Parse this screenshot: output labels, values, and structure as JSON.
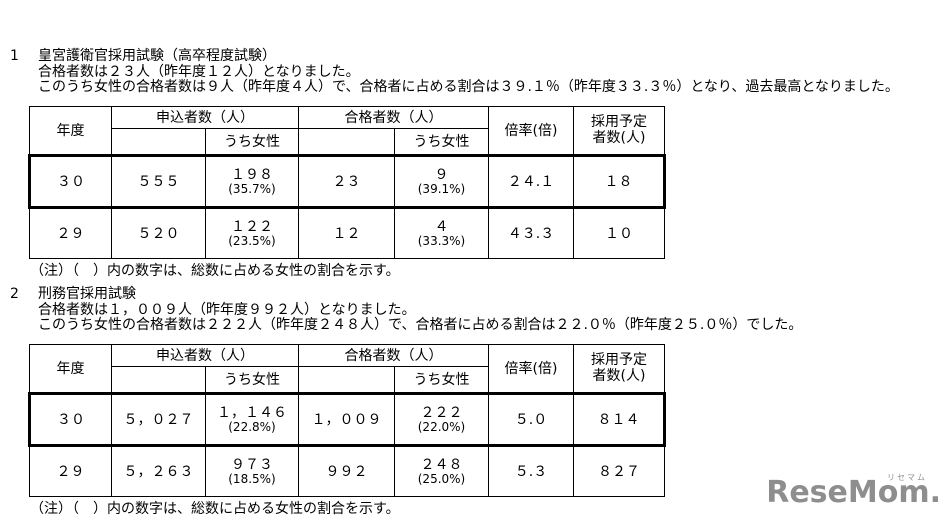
{
  "page": {
    "background": "#ffffff",
    "text_color": "#000000",
    "border_color": "#000000"
  },
  "sections": [
    {
      "number": "1",
      "title": "皇宮護衛官採用試験（高卒程度試験）",
      "paragraph_lines": [
        "合格者数は２３人（昨年度１２人）となりました。",
        "このうち女性の合格者数は９人（昨年度４人）で、合格者に占める割合は３９.１％（昨年度３３.３％）となり、過去最高となりました。"
      ],
      "table": {
        "headers": {
          "year": "年度",
          "applicants": "申込者数（人）",
          "applicants_female": "うち女性",
          "passers": "合格者数（人）",
          "passers_female": "うち女性",
          "ratio": "倍率(倍)",
          "planned_line1": "採用予定",
          "planned_line2": "者数(人)"
        },
        "rows": [
          {
            "year": "３０",
            "applicants": "５５５",
            "applicants_female": "１９８",
            "applicants_female_pct": "(35.7%)",
            "passers": "２３",
            "passers_female": "９",
            "passers_female_pct": "(39.1%)",
            "ratio": "２４.１",
            "planned": "１８"
          },
          {
            "year": "２９",
            "applicants": "５２０",
            "applicants_female": "１２２",
            "applicants_female_pct": "(23.5%)",
            "passers": "１２",
            "passers_female": "４",
            "passers_female_pct": "(33.3%)",
            "ratio": "４３.３",
            "planned": "１０"
          }
        ],
        "note": "（注）（　）内の数字は、総数に占める女性の割合を示す。"
      }
    },
    {
      "number": "2",
      "title": "刑務官採用試験",
      "paragraph_lines": [
        "合格者数は１，００９人（昨年度９９２人）となりました。",
        "このうち女性の合格者数は２２２人（昨年度２４８人）で、合格者に占める割合は２２.０％（昨年度２５.０％）でした。"
      ],
      "table": {
        "headers": {
          "year": "年度",
          "applicants": "申込者数（人）",
          "applicants_female": "うち女性",
          "passers": "合格者数（人）",
          "passers_female": "うち女性",
          "ratio": "倍率(倍)",
          "planned_line1": "採用予定",
          "planned_line2": "者数(人)"
        },
        "rows": [
          {
            "year": "３０",
            "applicants": "５，０２７",
            "applicants_female": "１，１４６",
            "applicants_female_pct": "(22.8%)",
            "passers": "１，００９",
            "passers_female": "２２２",
            "passers_female_pct": "(22.0%)",
            "ratio": "５.０",
            "planned": "８１４"
          },
          {
            "year": "２９",
            "applicants": "５，２６３",
            "applicants_female": "９７３",
            "applicants_female_pct": "(18.5%)",
            "passers": "９９２",
            "passers_female": "２４８",
            "passers_female_pct": "(25.0%)",
            "ratio": "５.３",
            "planned": "８２７"
          }
        ],
        "note": "（注）（　）内の数字は、総数に占める女性の割合を示す。"
      }
    }
  ],
  "logo": {
    "text": "ReseMom.",
    "kana": "リセマム",
    "color": "#8e8e8e"
  }
}
